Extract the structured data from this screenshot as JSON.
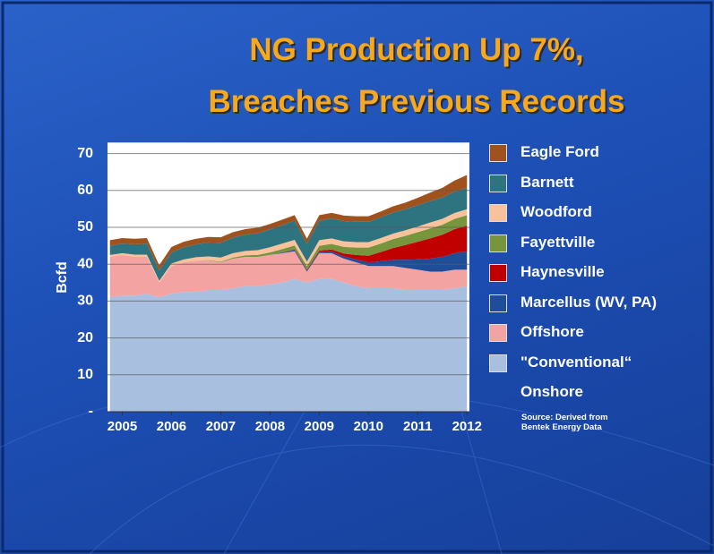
{
  "chart_data": {
    "type": "stacked_area",
    "title": [
      "NG Production Up 7%,",
      "Breaches Previous Records"
    ],
    "y_label": "Bcfd",
    "source": "Source: Derived from Bentek Energy Data",
    "x": [
      2004.75,
      2005.0,
      2005.25,
      2005.5,
      2005.75,
      2006.0,
      2006.25,
      2006.5,
      2006.75,
      2007.0,
      2007.25,
      2007.5,
      2007.75,
      2008.0,
      2008.25,
      2008.5,
      2008.75,
      2009.0,
      2009.25,
      2009.5,
      2009.75,
      2010.0,
      2010.25,
      2010.5,
      2010.75,
      2011.0,
      2011.25,
      2011.5,
      2011.75,
      2012.0
    ],
    "xlim": [
      2004.7,
      2012.05
    ],
    "xticks": [
      2005,
      2006,
      2007,
      2008,
      2009,
      2010,
      2011,
      2012
    ],
    "ylim": [
      0,
      73
    ],
    "yticks": [
      {
        "value": 0,
        "label": "-"
      },
      10,
      20,
      30,
      40,
      50,
      60,
      70
    ],
    "grid": true,
    "series": [
      {
        "name": "\"Conventional“ Onshore",
        "color": "#a8bfdf",
        "values": [
          31,
          31.5,
          31.5,
          32,
          31,
          32,
          32.5,
          32.5,
          33,
          33,
          33.5,
          34,
          34,
          34.5,
          35,
          36,
          35,
          36,
          36,
          35,
          34,
          33.5,
          33.5,
          33.5,
          33,
          33,
          33,
          33,
          33.5,
          34
        ]
      },
      {
        "name": "Offshore",
        "color": "#f4a3a3",
        "values": [
          11,
          11,
          10.5,
          10,
          4,
          7.5,
          8,
          8.5,
          8,
          7.5,
          8,
          8,
          8,
          8,
          8,
          7.5,
          3,
          7,
          7,
          6.5,
          6.5,
          6,
          6,
          6,
          6,
          5.5,
          5,
          5,
          5,
          4.5
        ]
      },
      {
        "name": "Marcellus (WV, PA)",
        "color": "#1f4e99",
        "values": [
          0,
          0,
          0,
          0,
          0,
          0,
          0,
          0,
          0,
          0,
          0,
          0,
          0,
          0,
          0.2,
          0.3,
          0.3,
          0.4,
          0.5,
          0.6,
          0.8,
          1,
          1.3,
          1.7,
          2.2,
          2.8,
          3.5,
          4,
          4.5,
          5
        ]
      },
      {
        "name": "Haynesville",
        "color": "#c00000",
        "values": [
          0,
          0,
          0,
          0,
          0,
          0,
          0,
          0,
          0,
          0,
          0,
          0,
          0,
          0,
          0,
          0.2,
          0.2,
          0.3,
          0.5,
          0.8,
          1.2,
          1.8,
          2.5,
          3.2,
          4,
          4.8,
          5.5,
          6,
          6.5,
          7
        ]
      },
      {
        "name": "Fayettville",
        "color": "#77953c",
        "values": [
          0,
          0,
          0,
          0,
          0,
          0,
          0,
          0,
          0.1,
          0.2,
          0.3,
          0.4,
          0.5,
          0.7,
          0.9,
          1.1,
          1,
          1.3,
          1.5,
          1.8,
          2,
          2.2,
          2.3,
          2.4,
          2.5,
          2.6,
          2.7,
          2.7,
          2.8,
          2.8
        ]
      },
      {
        "name": "Woodford",
        "color": "#f9c29a",
        "values": [
          0.5,
          0.5,
          0.6,
          0.6,
          0.5,
          0.7,
          0.8,
          0.9,
          1,
          1.1,
          1.2,
          1.2,
          1.3,
          1.4,
          1.5,
          1.5,
          1.2,
          1.5,
          1.5,
          1.5,
          1.5,
          1.5,
          1.5,
          1.5,
          1.5,
          1.5,
          1.6,
          1.6,
          1.6,
          1.6
        ]
      },
      {
        "name": "Barnett",
        "color": "#2d7380",
        "values": [
          2.5,
          2.6,
          2.8,
          3,
          2.8,
          3,
          3.3,
          3.5,
          3.8,
          4,
          4.2,
          4.4,
          4.6,
          4.8,
          5,
          5.2,
          4.8,
          5.3,
          5.4,
          5.5,
          5.5,
          5.5,
          5.6,
          5.7,
          5.7,
          5.8,
          5.8,
          5.8,
          5.8,
          5.8
        ]
      },
      {
        "name": "Eagle Ford",
        "color": "#a0521e",
        "values": [
          1.5,
          1.5,
          1.5,
          1.5,
          1.4,
          1.5,
          1.5,
          1.5,
          1.5,
          1.5,
          1.5,
          1.5,
          1.5,
          1.5,
          1.5,
          1.5,
          1.4,
          1.5,
          1.5,
          1.5,
          1.5,
          1.5,
          1.6,
          1.7,
          1.8,
          2,
          2.3,
          2.6,
          3,
          3.5
        ]
      }
    ]
  }
}
